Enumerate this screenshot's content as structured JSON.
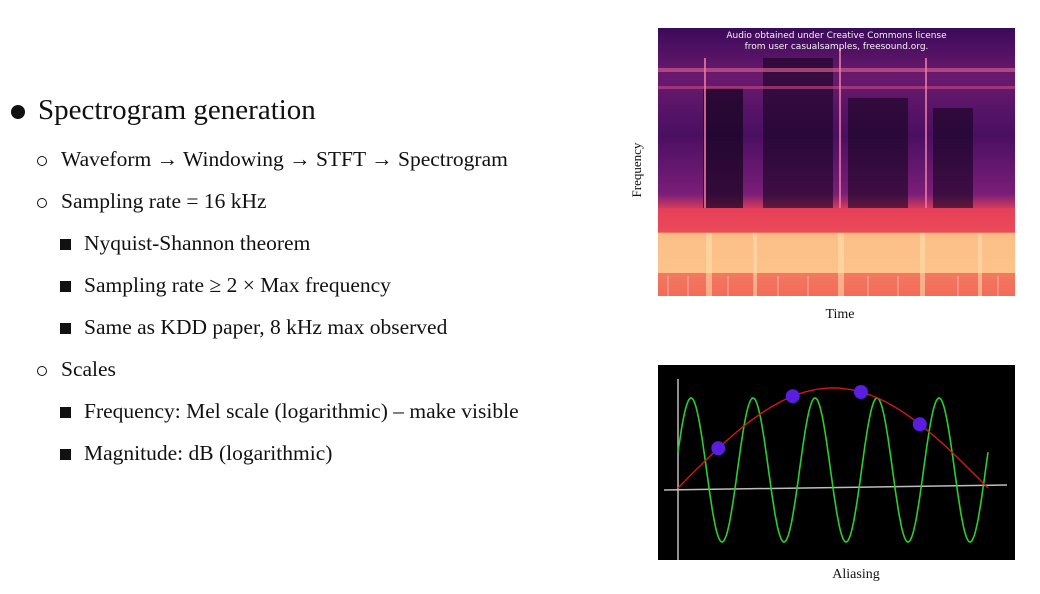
{
  "slide": {
    "heading": "Spectrogram generation",
    "items": [
      {
        "text": "Waveform → Windowing → STFT → Spectrogram"
      },
      {
        "text": "Sampling rate = 16 kHz"
      },
      {
        "text": "Nyquist-Shannon theorem"
      },
      {
        "text": "Sampling rate ≥ 2 × Max frequency"
      },
      {
        "text": "Same as KDD paper, 8 kHz max observed"
      },
      {
        "text": "Scales"
      },
      {
        "text": "Frequency: Mel scale (logarithmic) – make visible"
      },
      {
        "text": "Magnitude: dB (logarithmic)"
      }
    ]
  },
  "spectrogram": {
    "credit_line1": "Audio obtained under Creative Commons license",
    "credit_line2": "from user casualsamples, freesound.org.",
    "y_label": "Frequency",
    "x_label": "Time"
  },
  "aliasing": {
    "caption": "Aliasing",
    "colors": {
      "signal": "#2ecc2e",
      "alias": "#cc1a1a",
      "samples": "#5a1ee0",
      "axes": "#bdbdbd"
    }
  }
}
